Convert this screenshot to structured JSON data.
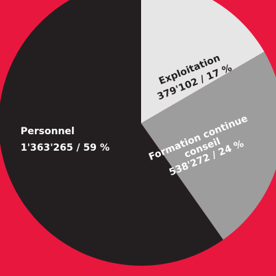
{
  "colors": {
    "background": "#E8173E",
    "personnel": "#231F20",
    "exploitation": "#E6E6E6",
    "formation": "#9D9D9D",
    "dark_text": "#231F20",
    "light_text": "#FFFFFF"
  },
  "chart_data": {
    "type": "pie",
    "title": "",
    "slices": [
      {
        "name": "Exploitation",
        "value": 379102,
        "percent": 17,
        "label_lines": [
          "Exploitation",
          "379'102 / 17 %"
        ]
      },
      {
        "name": "Formation continue conseil",
        "value": 538272,
        "percent": 24,
        "label_lines": [
          "Formation continue",
          "conseil",
          "538'272 / 24 %"
        ]
      },
      {
        "name": "Personnel",
        "value": 1363265,
        "percent": 59,
        "label_lines": [
          "Personnel",
          "1'363'265 / 59 %"
        ]
      }
    ]
  }
}
